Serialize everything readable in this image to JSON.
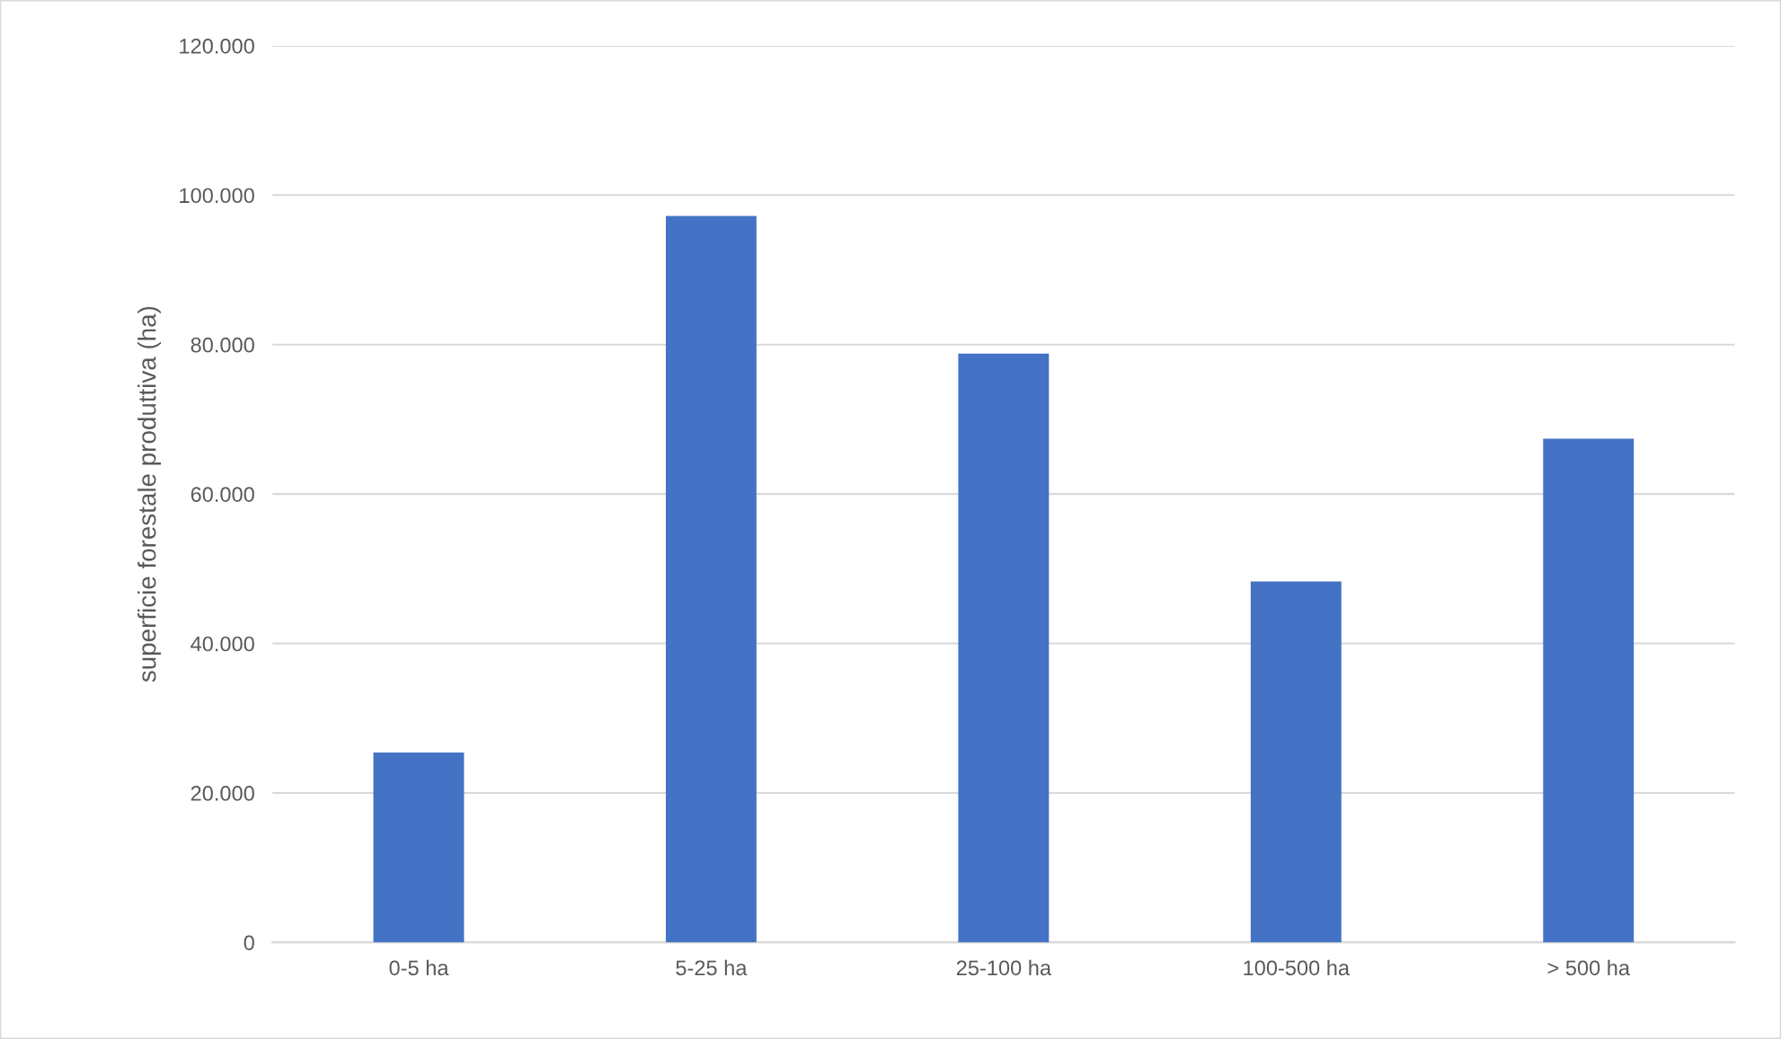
{
  "chart_data": {
    "type": "bar",
    "ylabel": "superficie forestale produttiva (ha)",
    "categories": [
      "0-5 ha",
      "5-25 ha",
      "25-100 ha",
      "100-500 ha",
      "> 500 ha"
    ],
    "values": [
      25400,
      97200,
      78800,
      48300,
      67400
    ],
    "color": "#4472c4",
    "ylim": [
      0,
      120000
    ],
    "yticks": [
      0,
      {
        "value": 20000,
        "label": "20.000"
      },
      {
        "value": 40000,
        "label": "40.000"
      },
      {
        "value": 60000,
        "label": "60.000"
      },
      {
        "value": 80000,
        "label": "80.000"
      },
      {
        "value": 100000,
        "label": "100.000"
      },
      {
        "value": 120000,
        "label": "120.000"
      }
    ],
    "grid": "y"
  }
}
